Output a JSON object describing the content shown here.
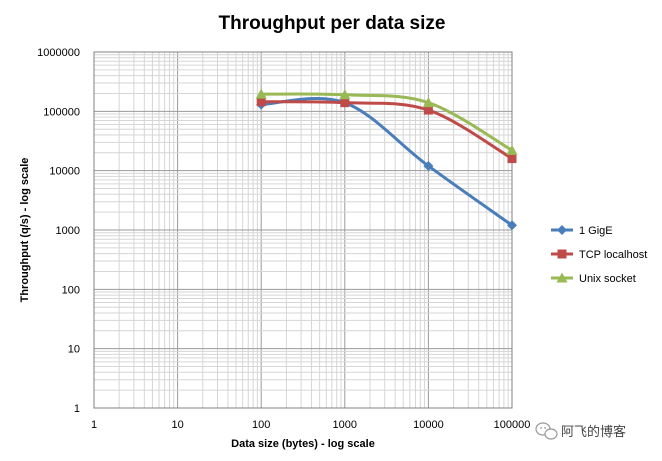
{
  "chart_data": {
    "type": "line",
    "title": "Throughput per data size",
    "xlabel": "Data size (bytes) - log scale",
    "ylabel": "Throughput (q/s) - log scale",
    "x_scale": "log",
    "y_scale": "log",
    "xlim": [
      1,
      100000
    ],
    "ylim": [
      1,
      1000000
    ],
    "x_ticks": [
      "1",
      "10",
      "100",
      "1000",
      "10000",
      "100000"
    ],
    "y_ticks": [
      "1",
      "10",
      "100",
      "1000",
      "10000",
      "100000",
      "1000000"
    ],
    "grid": true,
    "legend_position": "right",
    "x": [
      100,
      1000,
      10000,
      100000
    ],
    "series": [
      {
        "name": "1 GigE",
        "color": "#4a7ebb",
        "marker": "diamond",
        "values": [
          130000,
          140000,
          12000,
          1200
        ]
      },
      {
        "name": "TCP localhost",
        "color": "#be4b48",
        "marker": "square",
        "values": [
          145000,
          140000,
          105000,
          16000
        ]
      },
      {
        "name": "Unix socket",
        "color": "#98b954",
        "marker": "triangle",
        "values": [
          195000,
          190000,
          140000,
          22000
        ]
      }
    ]
  },
  "watermark": {
    "icon": "wechat-icon",
    "text": "阿飞的博客"
  }
}
